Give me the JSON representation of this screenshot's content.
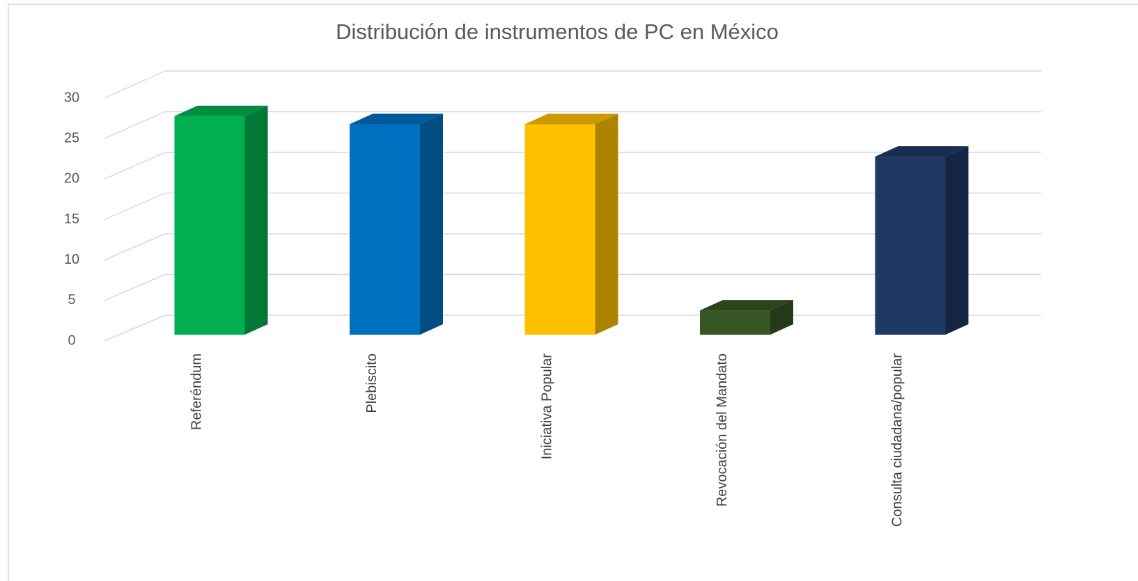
{
  "chart_data": {
    "type": "bar3d",
    "title": "Distribución de instrumentos de PC en México",
    "categories": [
      "Referéndum",
      "Plebiscito",
      "Iniciativa Popular",
      "Revocación del Mandato",
      "Consulta ciudadana/popular"
    ],
    "values": [
      27,
      26,
      26,
      3,
      22
    ],
    "colors": [
      "#00b050",
      "#0070c0",
      "#ffc000",
      "#375623",
      "#1f3864"
    ],
    "ylim": [
      0,
      30
    ],
    "yticks": [
      0,
      5,
      10,
      15,
      20,
      25,
      30
    ],
    "grid": true
  }
}
